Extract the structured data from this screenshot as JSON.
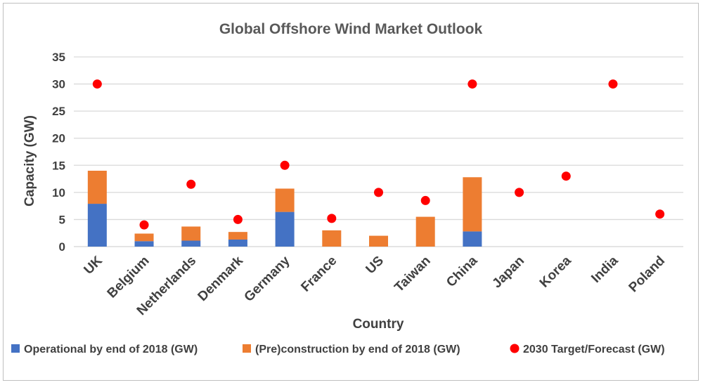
{
  "chart_data": {
    "type": "bar",
    "stacked": true,
    "title": "Global Offshore Wind Market Outlook",
    "xlabel": "Country",
    "ylabel": "Capacity (GW)",
    "ylim": [
      0,
      35
    ],
    "yticks": [
      "0",
      "5",
      "10",
      "15",
      "20",
      "25",
      "30",
      "35"
    ],
    "grid": true,
    "legend_position": "bottom",
    "categories": [
      "UK",
      "Belgium",
      "Netherlands",
      "Denmark",
      "Germany",
      "France",
      "US",
      "Taiwan",
      "China",
      "Japan",
      "Korea",
      "India",
      "Poland"
    ],
    "series": [
      {
        "name": "Operational by end of 2018 (GW)",
        "kind": "bar",
        "color": "#4472c4",
        "values": [
          7.9,
          1.0,
          1.1,
          1.3,
          6.4,
          0,
          0,
          0,
          2.8,
          0,
          0,
          0,
          0
        ]
      },
      {
        "name": "(Pre)construction by end of 2018 (GW)",
        "kind": "bar",
        "color": "#ed7d31",
        "values": [
          6.1,
          1.4,
          2.6,
          1.4,
          4.3,
          3.0,
          2.0,
          5.5,
          10.0,
          0,
          0,
          0,
          0
        ]
      },
      {
        "name": "2030 Target/Forecast (GW)",
        "kind": "scatter",
        "color": "#ff0000",
        "values": [
          30,
          4.0,
          11.5,
          5.0,
          15,
          5.2,
          10,
          8.5,
          30,
          10,
          13,
          30,
          6
        ]
      }
    ]
  }
}
